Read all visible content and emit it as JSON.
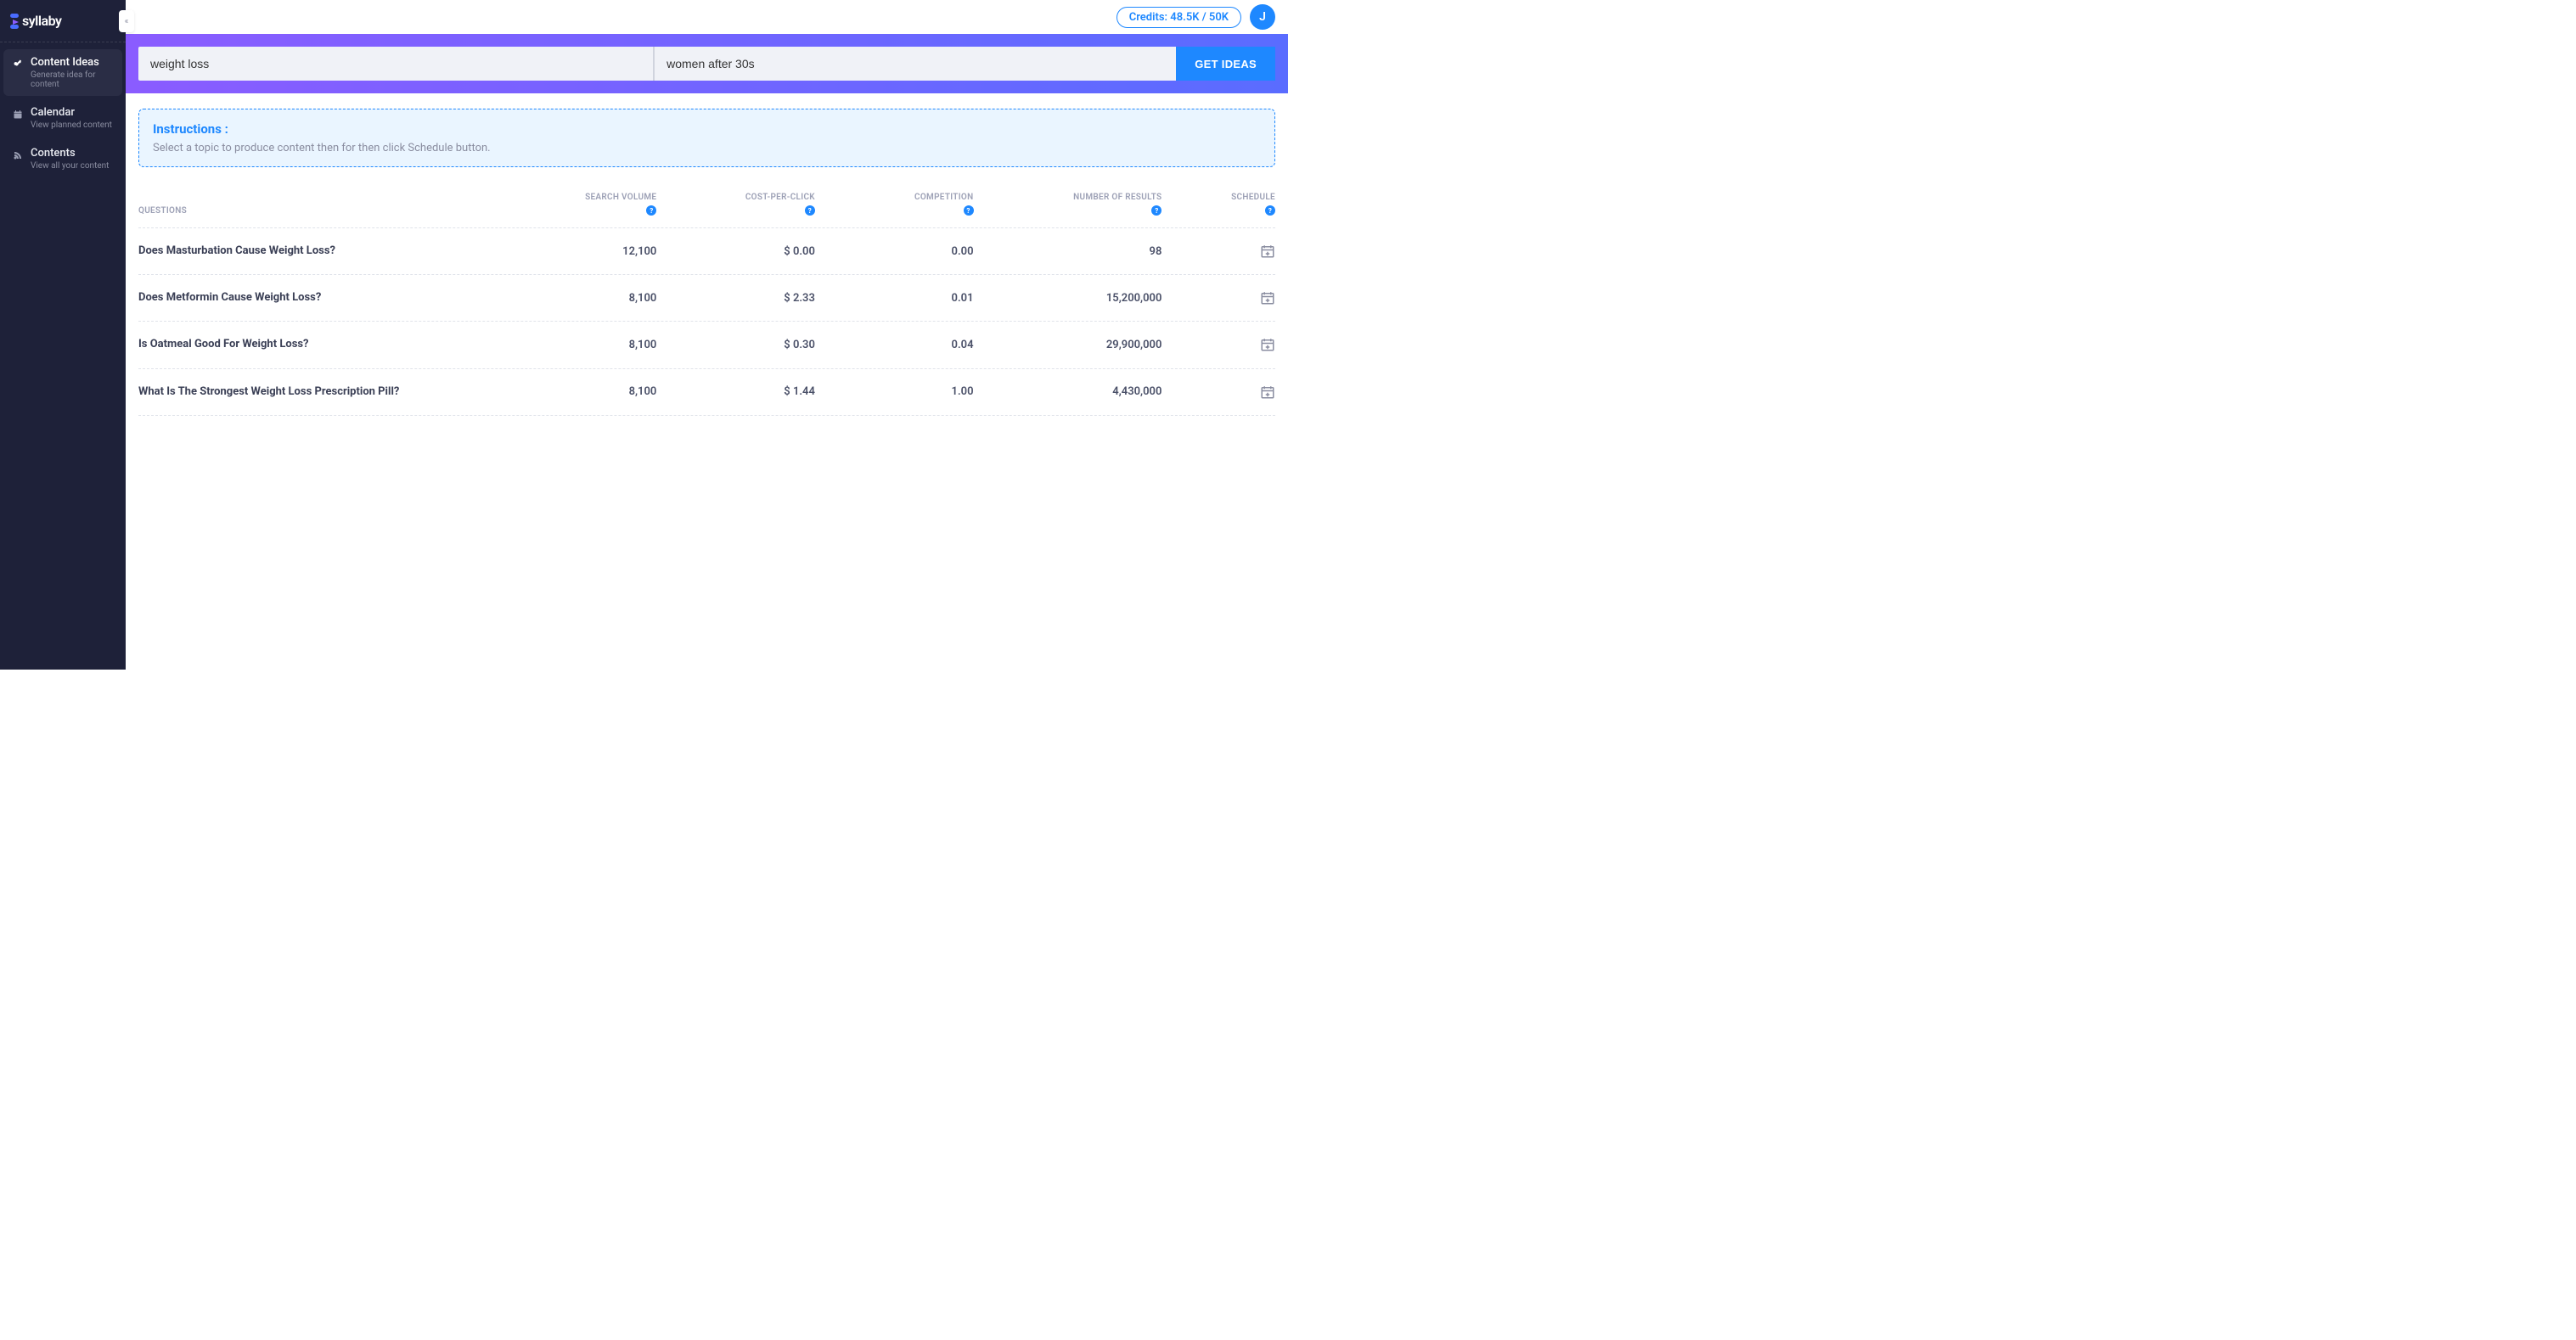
{
  "brand": "syllaby",
  "collapse_glyph": "«",
  "sidebar": {
    "items": [
      {
        "title": "Content Ideas",
        "sub": "Generate idea for content",
        "icon": "key",
        "active": true
      },
      {
        "title": "Calendar",
        "sub": "View planned content",
        "icon": "calendar",
        "active": false
      },
      {
        "title": "Contents",
        "sub": "View all your content",
        "icon": "blog",
        "active": false
      }
    ]
  },
  "header": {
    "credits_label": "Credits: 48.5K / 50K",
    "avatar_initial": "J"
  },
  "search": {
    "topic_value": "weight loss",
    "audience_value": "women after 30s",
    "button_label": "GET IDEAS"
  },
  "instructions": {
    "title": "Instructions :",
    "body": "Select a topic to produce content then for then click Schedule button."
  },
  "table": {
    "columns": [
      "QUESTIONS",
      "SEARCH VOLUME",
      "COST-PER-CLICK",
      "COMPETITION",
      "NUMBER OF RESULTS",
      "SCHEDULE"
    ],
    "rows": [
      {
        "q": "Does Masturbation Cause Weight Loss?",
        "sv": "12,100",
        "cpc": "$ 0.00",
        "comp": "0.00",
        "nr": "98"
      },
      {
        "q": "Does Metformin Cause Weight Loss?",
        "sv": "8,100",
        "cpc": "$ 2.33",
        "comp": "0.01",
        "nr": "15,200,000"
      },
      {
        "q": "Is Oatmeal Good For Weight Loss?",
        "sv": "8,100",
        "cpc": "$ 0.30",
        "comp": "0.04",
        "nr": "29,900,000"
      },
      {
        "q": "What Is The Strongest Weight Loss Prescription Pill?",
        "sv": "8,100",
        "cpc": "$ 1.44",
        "comp": "1.00",
        "nr": "4,430,000"
      }
    ]
  },
  "colors": {
    "sidebar_bg": "#1e2139",
    "accent": "#1e88ff",
    "gradient_start": "#8a5cff",
    "gradient_end": "#5a6cff"
  }
}
